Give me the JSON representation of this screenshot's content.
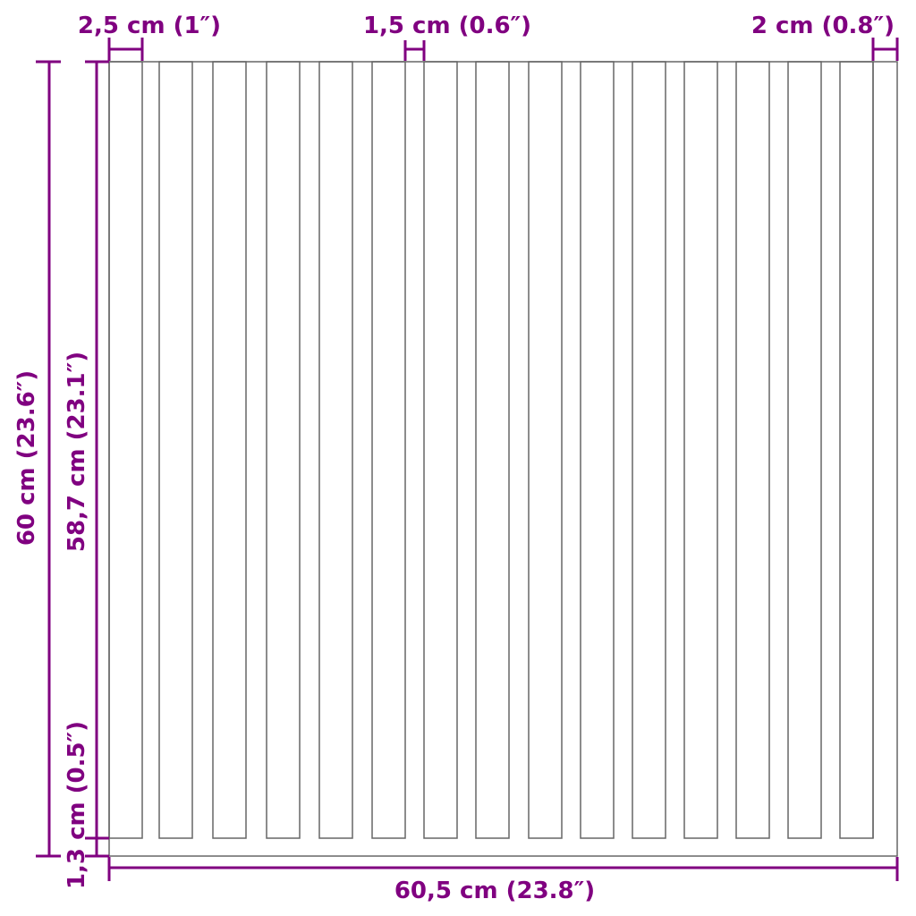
{
  "colors": {
    "dimension": "#800080",
    "outline": "#666666"
  },
  "labels": {
    "slat_width": "2,5 cm (1″)",
    "gap_width": "1,5 cm (0.6″)",
    "edge_width": "2 cm (0.8″)",
    "total_height": "60 cm (23.6″)",
    "slat_height": "58,7 cm (23.1″)",
    "base_height": "1,3 cm (0.5″)",
    "total_width": "60,5 cm (23.8″)"
  },
  "slat_count": 15
}
